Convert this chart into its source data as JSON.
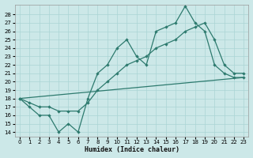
{
  "xlabel": "Humidex (Indice chaleur)",
  "bg_color": "#cce8e8",
  "line_color": "#2d7a6e",
  "grid_color": "#aad4d4",
  "xlim": [
    -0.5,
    23.5
  ],
  "ylim": [
    13.5,
    29.2
  ],
  "xticks": [
    0,
    1,
    2,
    3,
    4,
    5,
    6,
    7,
    8,
    9,
    10,
    11,
    12,
    13,
    14,
    15,
    16,
    17,
    18,
    19,
    20,
    21,
    22,
    23
  ],
  "yticks": [
    14,
    15,
    16,
    17,
    18,
    19,
    20,
    21,
    22,
    23,
    24,
    25,
    26,
    27,
    28
  ],
  "line1_x": [
    0,
    1,
    2,
    3,
    4,
    5,
    6,
    7,
    8,
    9,
    10,
    11,
    12,
    13,
    14,
    15,
    16,
    17,
    18,
    19,
    20,
    21,
    22,
    23
  ],
  "line1_y": [
    18,
    17,
    16,
    16,
    14,
    15,
    14,
    18,
    21,
    22,
    24,
    25,
    23,
    22,
    26,
    26.5,
    27,
    29,
    27,
    26,
    22,
    21,
    20.5,
    20.5
  ],
  "line2_x": [
    0,
    1,
    2,
    3,
    4,
    5,
    6,
    7,
    8,
    9,
    10,
    11,
    12,
    13,
    14,
    15,
    16,
    17,
    18,
    19,
    20,
    21,
    22,
    23
  ],
  "line2_y": [
    18,
    17.5,
    17,
    17,
    16.5,
    16.5,
    16.5,
    17.5,
    19,
    20,
    21,
    22,
    22.5,
    23,
    24,
    24.5,
    25,
    26,
    26.5,
    27,
    25,
    22,
    21,
    21
  ],
  "line3_x": [
    0,
    23
  ],
  "line3_y": [
    18,
    20.5
  ]
}
